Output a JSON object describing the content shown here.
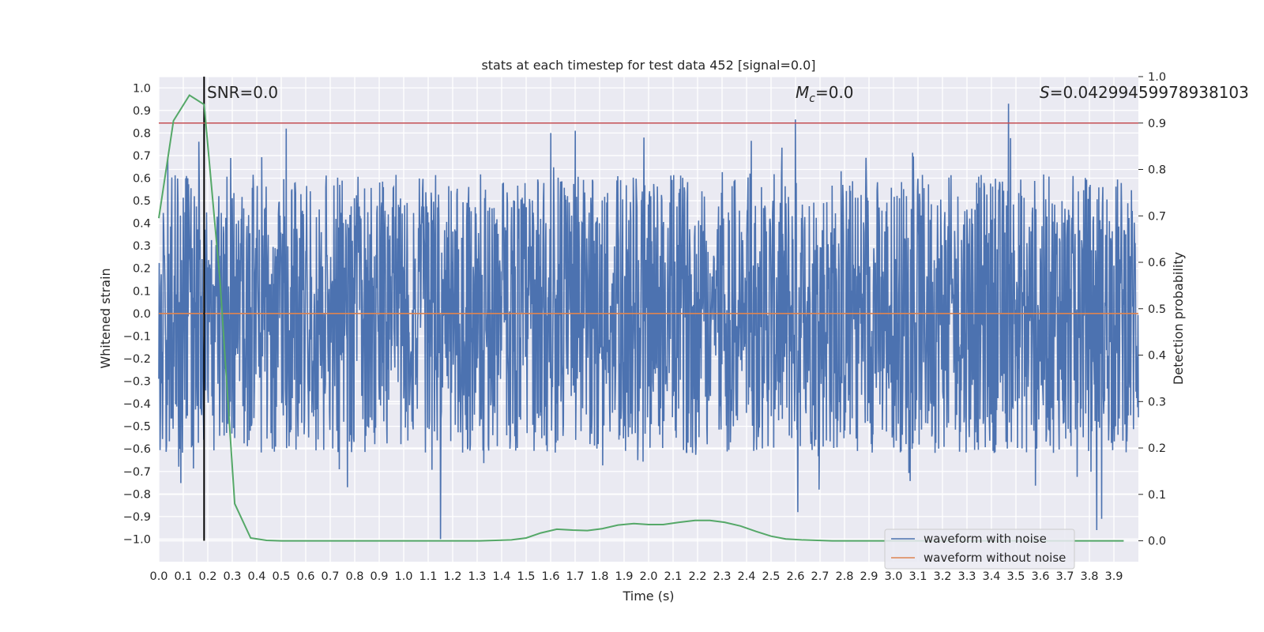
{
  "chart_data": {
    "type": "line",
    "title": "stats at each timestep for test data 452 [signal=0.0]",
    "xlabel": "Time (s)",
    "ylabel": "Whitened strain",
    "y2label": "Detection probability",
    "xlim": [
      0.0,
      4.0
    ],
    "ylim": [
      -1.1,
      1.05
    ],
    "y2lim": [
      -0.045,
      1.0
    ],
    "x_ticks": [
      "0.0",
      "0.1",
      "0.2",
      "0.3",
      "0.4",
      "0.5",
      "0.6",
      "0.7",
      "0.8",
      "0.9",
      "1.0",
      "1.1",
      "1.2",
      "1.3",
      "1.4",
      "1.5",
      "1.6",
      "1.7",
      "1.8",
      "1.9",
      "2.0",
      "2.1",
      "2.2",
      "2.3",
      "2.4",
      "2.5",
      "2.6",
      "2.7",
      "2.8",
      "2.9",
      "3.0",
      "3.1",
      "3.2",
      "3.3",
      "3.4",
      "3.5",
      "3.6",
      "3.7",
      "3.8",
      "3.9"
    ],
    "y_ticks": [
      "−1.0",
      "−0.9",
      "−0.8",
      "−0.7",
      "−0.6",
      "−0.5",
      "−0.4",
      "−0.3",
      "−0.2",
      "−0.1",
      "0.0",
      "0.1",
      "0.2",
      "0.3",
      "0.4",
      "0.5",
      "0.6",
      "0.7",
      "0.8",
      "0.9",
      "1.0"
    ],
    "y2_ticks": [
      "0.0",
      "0.1",
      "0.2",
      "0.3",
      "0.4",
      "0.5",
      "0.6",
      "0.7",
      "0.8",
      "0.9",
      "1.0"
    ],
    "annotations": {
      "snr": "SNR=0.0",
      "mc_symbol": "M",
      "mc_subscript": "c",
      "mc_value": "=0.0",
      "s_symbol": "S",
      "s_value": "=0.04299459978938103"
    },
    "marker_time": 0.185,
    "threshold_probability": 0.9,
    "legend": {
      "position": "lower right",
      "entries": [
        {
          "label": "waveform with noise",
          "color": "#4c72b0"
        },
        {
          "label": "waveform without noise",
          "color": "#dd8452"
        }
      ]
    },
    "series": [
      {
        "name": "waveform with noise",
        "axis": "left",
        "color": "#4c72b0",
        "description": "whitened noisy strain, approx. uniform noise in [-1, 1] sampled densely over 0-4 s",
        "noise_amplitude": 1.0,
        "num_points": 2400,
        "peaks": [
          {
            "x": 3.47,
            "y": 0.93
          },
          {
            "x": 2.6,
            "y": 0.86
          },
          {
            "x": 0.52,
            "y": 0.82
          },
          {
            "x": 1.7,
            "y": 0.81
          },
          {
            "x": 1.6,
            "y": 0.8
          },
          {
            "x": 1.98,
            "y": 0.78
          },
          {
            "x": 1.15,
            "y": -1.0
          },
          {
            "x": 3.83,
            "y": -0.96
          },
          {
            "x": 3.85,
            "y": -0.91
          },
          {
            "x": 2.61,
            "y": -0.88
          },
          {
            "x": 0.77,
            "y": -0.77
          }
        ]
      },
      {
        "name": "waveform without noise",
        "axis": "left",
        "color": "#dd8452",
        "x": [
          0.0,
          4.0
        ],
        "y": [
          0.0,
          0.0
        ]
      },
      {
        "name": "detection probability",
        "axis": "right",
        "color": "#55a868",
        "x": [
          0.0,
          0.06,
          0.125,
          0.185,
          0.25,
          0.31,
          0.375,
          0.44,
          0.5,
          0.56,
          0.625,
          0.69,
          0.75,
          0.81,
          0.875,
          0.94,
          1.0,
          1.06,
          1.125,
          1.19,
          1.25,
          1.31,
          1.375,
          1.44,
          1.5,
          1.56,
          1.625,
          1.69,
          1.75,
          1.81,
          1.875,
          1.94,
          2.0,
          2.06,
          2.125,
          2.19,
          2.25,
          2.31,
          2.375,
          2.44,
          2.5,
          2.56,
          2.625,
          2.69,
          2.75,
          2.81,
          2.875,
          2.94,
          3.0,
          3.06,
          3.125,
          3.19,
          3.25,
          3.31,
          3.375,
          3.44,
          3.5,
          3.56,
          3.625,
          3.69,
          3.75,
          3.81,
          3.875,
          3.94
        ],
        "y": [
          0.695,
          0.905,
          0.96,
          0.94,
          0.56,
          0.08,
          0.006,
          0.001,
          0.0,
          0.0,
          0.0,
          0.0,
          0.0,
          0.0,
          0.0,
          0.0,
          0.0,
          0.0,
          0.0,
          0.0,
          0.0,
          0.0,
          0.001,
          0.002,
          0.006,
          0.017,
          0.025,
          0.023,
          0.022,
          0.026,
          0.034,
          0.037,
          0.035,
          0.035,
          0.04,
          0.044,
          0.044,
          0.04,
          0.032,
          0.02,
          0.01,
          0.004,
          0.002,
          0.001,
          0.0,
          0.0,
          0.0,
          0.0,
          0.0,
          0.0,
          0.0,
          0.0,
          0.0,
          0.0,
          0.0,
          0.0,
          0.0,
          0.0,
          0.0,
          0.0,
          0.0,
          0.0,
          0.0,
          0.0
        ]
      }
    ],
    "grid": true
  }
}
